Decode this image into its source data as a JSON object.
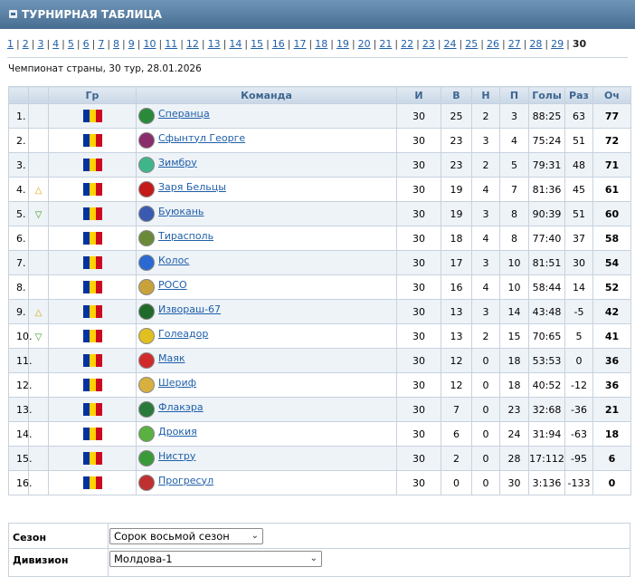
{
  "header": {
    "title": "ТУРНИРНАЯ ТАБЛИЦА"
  },
  "rounds": [
    "1",
    "2",
    "3",
    "4",
    "5",
    "6",
    "7",
    "8",
    "9",
    "10",
    "11",
    "12",
    "13",
    "14",
    "15",
    "16",
    "17",
    "18",
    "19",
    "20",
    "21",
    "22",
    "23",
    "24",
    "25",
    "26",
    "27",
    "28",
    "29",
    "30"
  ],
  "current_round": "30",
  "subtitle": "Чемпионат страны, 30 тур, 28.01.2026",
  "table": {
    "columns": {
      "group": "Гр",
      "team": "Команда",
      "played": "И",
      "wins": "В",
      "draws": "Н",
      "losses": "П",
      "goals": "Голы",
      "diff": "Раз",
      "points": "Оч"
    },
    "rows": [
      {
        "pos": "1.",
        "move": "",
        "team": "Сперанца",
        "logo": "#2a8a3a",
        "played": "30",
        "wins": "25",
        "draws": "2",
        "losses": "3",
        "goals": "88:25",
        "diff": "63",
        "points": "77"
      },
      {
        "pos": "2.",
        "move": "",
        "team": "Сфынтул Георге",
        "logo": "#8a2d6b",
        "played": "30",
        "wins": "23",
        "draws": "3",
        "losses": "4",
        "goals": "75:24",
        "diff": "51",
        "points": "72"
      },
      {
        "pos": "3.",
        "move": "",
        "team": "Зимбру",
        "logo": "#3fb58a",
        "played": "30",
        "wins": "23",
        "draws": "2",
        "losses": "5",
        "goals": "79:31",
        "diff": "48",
        "points": "71"
      },
      {
        "pos": "4.",
        "move": "up",
        "team": "Заря Бельцы",
        "logo": "#c41a1a",
        "played": "30",
        "wins": "19",
        "draws": "4",
        "losses": "7",
        "goals": "81:36",
        "diff": "45",
        "points": "61"
      },
      {
        "pos": "5.",
        "move": "down",
        "team": "Буюкань",
        "logo": "#3a5ab0",
        "played": "30",
        "wins": "19",
        "draws": "3",
        "losses": "8",
        "goals": "90:39",
        "diff": "51",
        "points": "60"
      },
      {
        "pos": "6.",
        "move": "",
        "team": "Тирасполь",
        "logo": "#6a8a3a",
        "played": "30",
        "wins": "18",
        "draws": "4",
        "losses": "8",
        "goals": "77:40",
        "diff": "37",
        "points": "58"
      },
      {
        "pos": "7.",
        "move": "",
        "team": "Колос",
        "logo": "#2a6ad0",
        "played": "30",
        "wins": "17",
        "draws": "3",
        "losses": "10",
        "goals": "81:51",
        "diff": "30",
        "points": "54"
      },
      {
        "pos": "8.",
        "move": "",
        "team": "РОСО",
        "logo": "#c8a23a",
        "played": "30",
        "wins": "16",
        "draws": "4",
        "losses": "10",
        "goals": "58:44",
        "diff": "14",
        "points": "52"
      },
      {
        "pos": "9.",
        "move": "up",
        "team": "Извораш-67",
        "logo": "#1f6a2a",
        "played": "30",
        "wins": "13",
        "draws": "3",
        "losses": "14",
        "goals": "43:48",
        "diff": "-5",
        "points": "42"
      },
      {
        "pos": "10.",
        "move": "down",
        "team": "Голеадор",
        "logo": "#e0c020",
        "played": "30",
        "wins": "13",
        "draws": "2",
        "losses": "15",
        "goals": "70:65",
        "diff": "5",
        "points": "41"
      },
      {
        "pos": "11.",
        "move": "",
        "team": "Маяк",
        "logo": "#d02a2a",
        "played": "30",
        "wins": "12",
        "draws": "0",
        "losses": "18",
        "goals": "53:53",
        "diff": "0",
        "points": "36"
      },
      {
        "pos": "12.",
        "move": "",
        "team": "Шериф",
        "logo": "#d8b040",
        "played": "30",
        "wins": "12",
        "draws": "0",
        "losses": "18",
        "goals": "40:52",
        "diff": "-12",
        "points": "36"
      },
      {
        "pos": "13.",
        "move": "",
        "team": "Флакэра",
        "logo": "#2a7a3a",
        "played": "30",
        "wins": "7",
        "draws": "0",
        "losses": "23",
        "goals": "32:68",
        "diff": "-36",
        "points": "21"
      },
      {
        "pos": "14.",
        "move": "",
        "team": "Дрокия",
        "logo": "#5ab040",
        "played": "30",
        "wins": "6",
        "draws": "0",
        "losses": "24",
        "goals": "31:94",
        "diff": "-63",
        "points": "18"
      },
      {
        "pos": "15.",
        "move": "",
        "team": "Нистру",
        "logo": "#3a9a3a",
        "played": "30",
        "wins": "2",
        "draws": "0",
        "losses": "28",
        "goals": "17:112",
        "diff": "-95",
        "points": "6"
      },
      {
        "pos": "16.",
        "move": "",
        "team": "Прогресул",
        "logo": "#c03030",
        "played": "30",
        "wins": "0",
        "draws": "0",
        "losses": "30",
        "goals": "3:136",
        "diff": "-133",
        "points": "0"
      }
    ]
  },
  "filters": {
    "season_label": "Сезон",
    "season_value": "Сорок восьмой сезон",
    "division_label": "Дивизион",
    "division_value": "Молдова-1"
  },
  "icons": {
    "up": "arrow-up-icon",
    "down": "arrow-down-icon",
    "flag": "moldova-flag-icon"
  }
}
